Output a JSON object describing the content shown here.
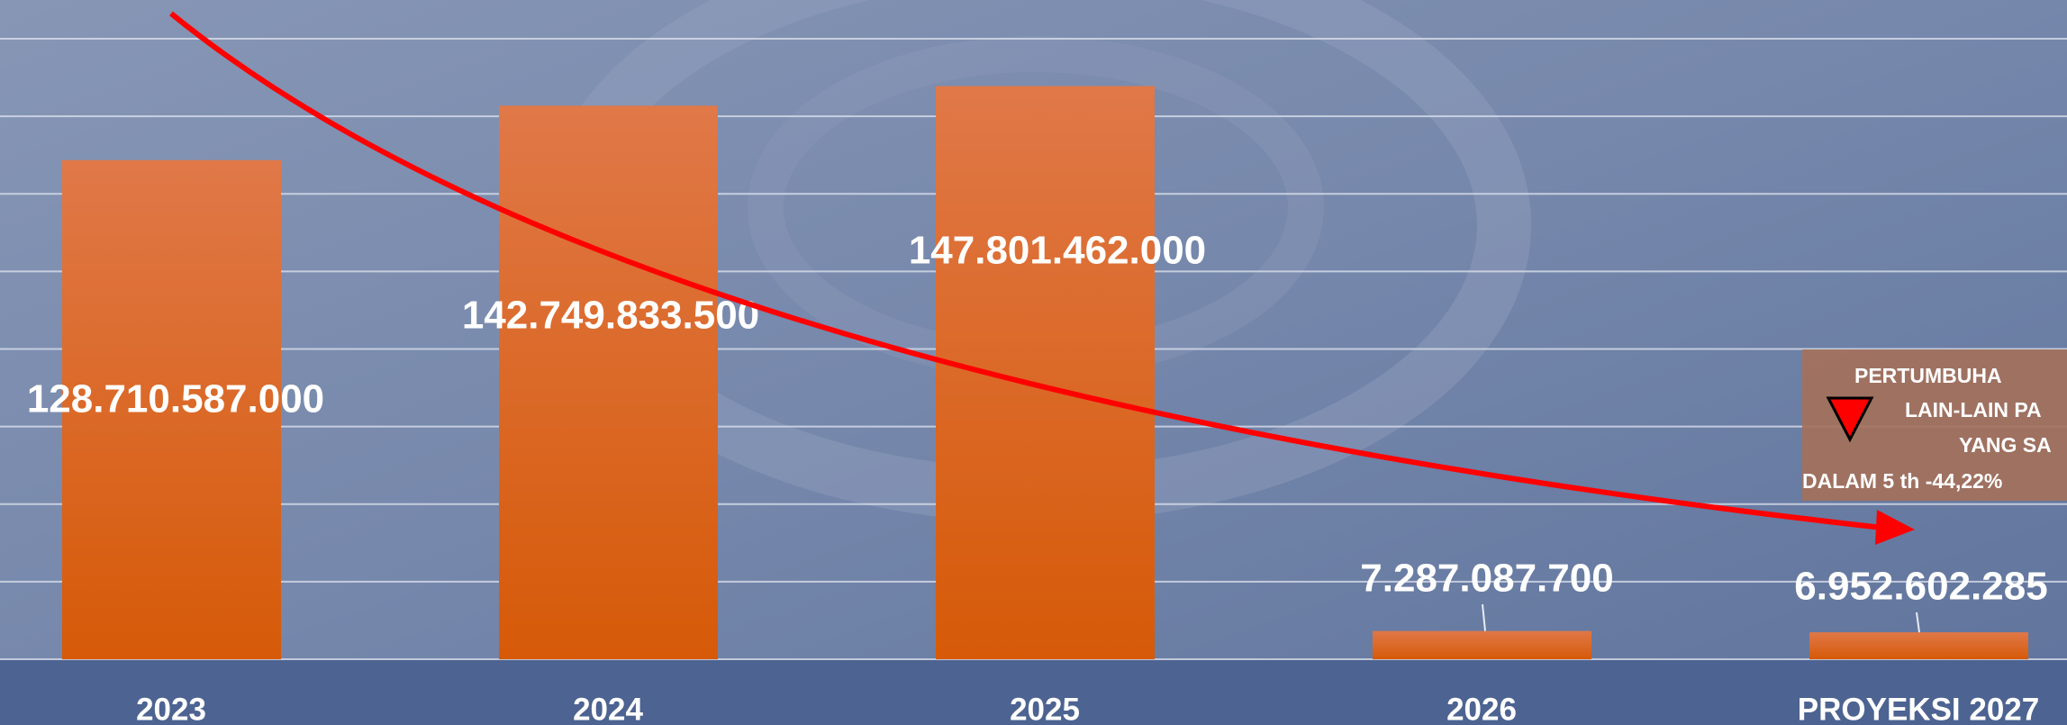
{
  "chart_data": {
    "type": "bar",
    "categories": [
      "2023",
      "2024",
      "2025",
      "2026",
      "PROYEKSI 2027"
    ],
    "values": [
      128710587000,
      142749833500,
      147801462000,
      7287087700,
      6952602285
    ],
    "value_labels": [
      "128.710.587.000",
      "142.749.833.500",
      "147.801.462.000",
      "7.287.087.700",
      "6.952.602.285"
    ],
    "color": "#dc5a10",
    "ylim": [
      0,
      170000000000
    ],
    "yticks": [
      0,
      20000000000,
      40000000000,
      60000000000,
      80000000000,
      100000000000,
      120000000000,
      140000000000,
      160000000000
    ],
    "grid": true,
    "annotation": [
      "PERTUMBUHA",
      "LAIN-LAIN PA",
      "YANG SA",
      "DALAM 5 th -44,22%"
    ]
  }
}
